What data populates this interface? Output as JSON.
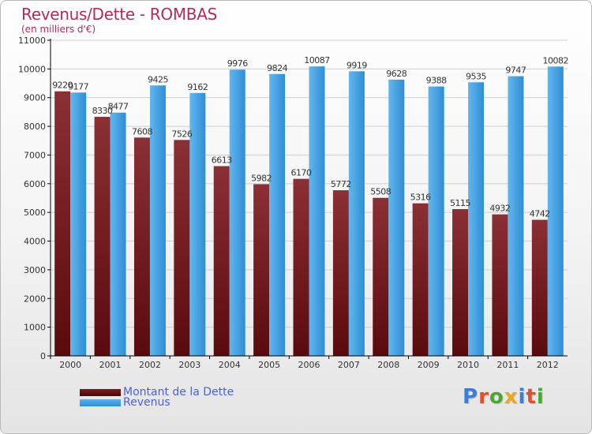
{
  "page": {
    "title": "Revenus/Dette - ROMBAS",
    "subtitle": "(en milliers d'€)"
  },
  "legend": {
    "items": [
      {
        "label": "Montant de la Dette",
        "color": "#6b0f12"
      },
      {
        "label": "Revenus",
        "color": "#3b9de0"
      }
    ]
  },
  "logo": {
    "text": "Proxiti",
    "letter_colors": [
      "#3a7fd5",
      "#e0502a",
      "#4aa832",
      "#e8a820",
      "#3a7fd5",
      "#e0502a",
      "#4aa832"
    ]
  },
  "colors": {
    "debt_top": "#8b3034",
    "debt_bottom": "#5a0a0d",
    "revenue_light": "#62b6ee",
    "revenue_dark": "#2f8ed4",
    "axis": "#000000",
    "grid": "#cfcfcf",
    "title": "#b52a5a"
  },
  "chart_data": {
    "type": "bar",
    "categories": [
      "2000",
      "2001",
      "2002",
      "2003",
      "2004",
      "2005",
      "2006",
      "2007",
      "2008",
      "2009",
      "2010",
      "2011",
      "2012"
    ],
    "series": [
      {
        "name": "Montant de la Dette",
        "values": [
          9220,
          8330,
          7608,
          7526,
          6613,
          5982,
          6170,
          5772,
          5508,
          5316,
          5115,
          4932,
          4742
        ],
        "labels": [
          "9220",
          "8330",
          "7608",
          "7526",
          "6613",
          "5982",
          "6170",
          "5772",
          "5508",
          "5316",
          "5115",
          "4932",
          "4742"
        ]
      },
      {
        "name": "Revenus",
        "values": [
          9177,
          8477,
          9425,
          9162,
          9976,
          9824,
          10087,
          9919,
          9628,
          9388,
          9535,
          9747,
          10082
        ],
        "labels": [
          "9177",
          "8477",
          "9425",
          "9162",
          "9976",
          "9824",
          "10087",
          "9919",
          "9628",
          "9388",
          "9535",
          "9747",
          "10082"
        ]
      }
    ],
    "yticks": [
      0,
      1000,
      2000,
      3000,
      4000,
      5000,
      6000,
      7000,
      8000,
      9000,
      10000,
      11000
    ],
    "ylim": [
      0,
      11000
    ],
    "title": "Revenus/Dette - ROMBAS",
    "ylabel": "(en milliers d'€)",
    "xlabel": "",
    "grid": true,
    "legend_position": "bottom-left"
  }
}
